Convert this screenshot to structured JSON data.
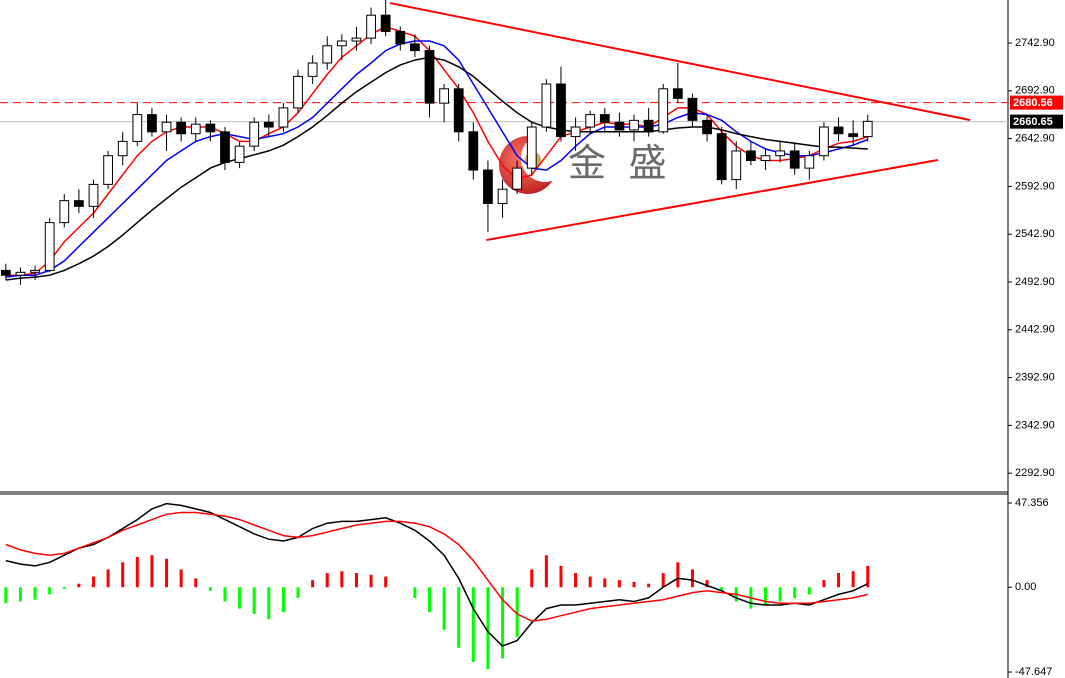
{
  "chart_data": [
    {
      "type": "candlestick",
      "watermark": "金 盛",
      "xlim": [
        -0.4,
        68.6
      ],
      "ylim": [
        2273.2,
        2787.9
      ],
      "yticks": [
        {
          "value": 2292.9,
          "label": "2292.90"
        },
        {
          "value": 2342.9,
          "label": "2342.90"
        },
        {
          "value": 2392.9,
          "label": "2392.90"
        },
        {
          "value": 2442.9,
          "label": "2442.90"
        },
        {
          "value": 2492.9,
          "label": "2492.90"
        },
        {
          "value": 2542.9,
          "label": "2542.90"
        },
        {
          "value": 2592.9,
          "label": "2592.90"
        },
        {
          "value": 2642.9,
          "label": "2642.90"
        },
        {
          "value": 2692.9,
          "label": "2692.90"
        },
        {
          "value": 2742.9,
          "label": "2742.90"
        }
      ],
      "up_color": "#ffffff",
      "down_color": "#000000",
      "open": [
        2505,
        2500,
        2503,
        2505,
        2555,
        2578,
        2572,
        2595,
        2625,
        2640,
        2668,
        2650,
        2660,
        2648,
        2658,
        2650,
        2618,
        2635,
        2660,
        2655,
        2675,
        2708,
        2722,
        2740,
        2745,
        2748,
        2772,
        2755,
        2742,
        2735,
        2680,
        2695,
        2650,
        2610,
        2575,
        2590,
        2612,
        2655,
        2700,
        2645,
        2655,
        2668,
        2660,
        2652,
        2662,
        2650,
        2695,
        2685,
        2662,
        2648,
        2600,
        2630,
        2620,
        2625,
        2630,
        2612,
        2625,
        2655,
        2648,
        2645
      ],
      "high": [
        2512,
        2508,
        2510,
        2560,
        2585,
        2590,
        2600,
        2630,
        2650,
        2680,
        2675,
        2668,
        2665,
        2665,
        2662,
        2655,
        2640,
        2665,
        2668,
        2680,
        2715,
        2730,
        2750,
        2752,
        2760,
        2780,
        2790,
        2760,
        2752,
        2740,
        2700,
        2700,
        2660,
        2620,
        2600,
        2620,
        2660,
        2705,
        2718,
        2665,
        2672,
        2675,
        2670,
        2668,
        2675,
        2700,
        2722,
        2690,
        2668,
        2655,
        2640,
        2640,
        2632,
        2640,
        2638,
        2630,
        2660,
        2665,
        2662,
        2668
      ],
      "low": [
        2495,
        2490,
        2495,
        2503,
        2550,
        2565,
        2560,
        2590,
        2615,
        2635,
        2645,
        2630,
        2640,
        2640,
        2640,
        2610,
        2612,
        2630,
        2645,
        2650,
        2670,
        2700,
        2715,
        2725,
        2735,
        2742,
        2750,
        2735,
        2728,
        2665,
        2660,
        2640,
        2600,
        2545,
        2560,
        2585,
        2605,
        2650,
        2640,
        2630,
        2648,
        2650,
        2645,
        2640,
        2645,
        2648,
        2680,
        2655,
        2640,
        2595,
        2590,
        2615,
        2610,
        2618,
        2605,
        2600,
        2620,
        2640,
        2635,
        2640
      ],
      "close": [
        2500,
        2503,
        2505,
        2555,
        2578,
        2572,
        2595,
        2625,
        2640,
        2668,
        2650,
        2660,
        2648,
        2658,
        2650,
        2618,
        2635,
        2660,
        2655,
        2675,
        2708,
        2722,
        2740,
        2745,
        2748,
        2772,
        2755,
        2742,
        2735,
        2680,
        2695,
        2650,
        2610,
        2575,
        2590,
        2612,
        2655,
        2700,
        2645,
        2655,
        2668,
        2660,
        2652,
        2662,
        2650,
        2695,
        2685,
        2662,
        2648,
        2600,
        2630,
        2620,
        2625,
        2630,
        2612,
        2625,
        2655,
        2648,
        2645,
        2661
      ],
      "series": [
        {
          "color": "#ff0000",
          "values": [
            2500,
            2500,
            2502,
            2515,
            2535,
            2550,
            2565,
            2585,
            2605,
            2625,
            2640,
            2650,
            2655,
            2655,
            2655,
            2648,
            2640,
            2640,
            2648,
            2655,
            2670,
            2690,
            2710,
            2728,
            2740,
            2752,
            2760,
            2755,
            2750,
            2735,
            2715,
            2695,
            2670,
            2640,
            2615,
            2600,
            2605,
            2625,
            2645,
            2650,
            2655,
            2660,
            2658,
            2658,
            2655,
            2665,
            2675,
            2675,
            2668,
            2650,
            2635,
            2625,
            2620,
            2620,
            2622,
            2625,
            2632,
            2638,
            2640,
            2645
          ]
        },
        {
          "color": "#0000ff",
          "values": [
            2498,
            2500,
            2500,
            2505,
            2515,
            2530,
            2545,
            2560,
            2575,
            2590,
            2605,
            2620,
            2630,
            2640,
            2645,
            2648,
            2645,
            2642,
            2645,
            2648,
            2655,
            2665,
            2680,
            2695,
            2710,
            2722,
            2735,
            2742,
            2745,
            2745,
            2740,
            2725,
            2700,
            2675,
            2650,
            2625,
            2612,
            2610,
            2620,
            2635,
            2648,
            2655,
            2655,
            2655,
            2655,
            2658,
            2665,
            2670,
            2668,
            2662,
            2650,
            2640,
            2632,
            2628,
            2625,
            2625,
            2628,
            2632,
            2636,
            2642
          ]
        },
        {
          "color": "#000000",
          "values": [
            2495,
            2497,
            2498,
            2500,
            2505,
            2512,
            2520,
            2530,
            2542,
            2555,
            2568,
            2580,
            2592,
            2602,
            2612,
            2618,
            2622,
            2626,
            2630,
            2636,
            2645,
            2655,
            2667,
            2680,
            2692,
            2702,
            2712,
            2720,
            2725,
            2728,
            2725,
            2718,
            2708,
            2695,
            2682,
            2670,
            2660,
            2655,
            2652,
            2650,
            2650,
            2650,
            2650,
            2650,
            2650,
            2652,
            2654,
            2655,
            2655,
            2652,
            2648,
            2645,
            2642,
            2640,
            2638,
            2636,
            2634,
            2634,
            2633,
            2632
          ]
        }
      ],
      "trendlines": [
        {
          "color": "#ff0000",
          "x": [
            26.3,
            66.0
          ],
          "y": [
            2784.7,
            2662.4
          ]
        },
        {
          "color": "#ff0000",
          "x": [
            32.9,
            63.8
          ],
          "y": [
            2536.8,
            2620.5
          ]
        }
      ],
      "price_lines": [
        {
          "value": 2680.56,
          "color": "#ff0000",
          "label_bg": "#ff0000",
          "label_color": "#ffffff",
          "dashed": true
        },
        {
          "value": 2660.65,
          "color": "#c0c0c0",
          "label_bg": "#000000",
          "label_color": "#ffffff",
          "dashed": false
        }
      ]
    },
    {
      "type": "macd",
      "xlim": [
        -0.4,
        68.6
      ],
      "ylim": [
        -51.0,
        52.4
      ],
      "yticks": [
        47.356,
        {
          "value": 0,
          "label": "0.00"
        },
        -47.647
      ],
      "histogram": {
        "up_color": "#ff0000",
        "down_color": "#00ff00",
        "values": [
          -9,
          -8,
          -7,
          -4,
          -1,
          2,
          6,
          10,
          14,
          17,
          18,
          16,
          10,
          5,
          -2,
          -8,
          -12,
          -15,
          -18,
          -14,
          -6,
          4,
          8,
          9,
          8,
          7,
          6,
          0,
          -6,
          -14,
          -24,
          -34,
          -42,
          -46,
          -40,
          -28,
          10,
          18,
          12,
          8,
          6,
          5,
          4,
          3,
          2,
          8,
          14,
          10,
          4,
          -2,
          -8,
          -12,
          -10,
          -8,
          -6,
          -4,
          4,
          8,
          9,
          12
        ]
      },
      "series": [
        {
          "color": "#000000",
          "values": [
            15,
            13,
            12,
            14,
            18,
            22,
            24,
            28,
            33,
            38,
            44,
            47,
            46,
            44,
            42,
            38,
            34,
            30,
            27,
            26,
            28,
            33,
            36,
            37,
            37,
            38,
            39,
            36,
            32,
            26,
            18,
            5,
            -12,
            -25,
            -33,
            -30,
            -20,
            -12,
            -10,
            -10,
            -9,
            -8,
            -7,
            -8,
            -6,
            0,
            5,
            4,
            1,
            -2,
            -6,
            -9,
            -10,
            -10,
            -9,
            -10,
            -7,
            -4,
            -2,
            2
          ]
        },
        {
          "color": "#ff0000",
          "values": [
            24,
            21,
            19,
            18,
            19,
            22,
            25,
            28,
            32,
            35,
            38,
            41,
            42,
            42,
            41,
            40,
            38,
            35,
            32,
            29,
            28,
            29,
            31,
            33,
            35,
            36,
            37,
            37,
            36,
            34,
            30,
            24,
            15,
            4,
            -7,
            -15,
            -19,
            -18,
            -16,
            -14,
            -12,
            -11,
            -10,
            -9,
            -8,
            -7,
            -5,
            -3,
            -2,
            -3,
            -4,
            -6,
            -8,
            -9,
            -9,
            -9,
            -8,
            -7,
            -6,
            -4
          ]
        }
      ]
    }
  ]
}
